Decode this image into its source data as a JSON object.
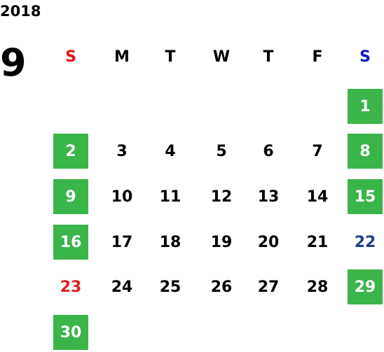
{
  "year": "2018",
  "month": "9",
  "weekdays": [
    {
      "label": "S",
      "color": "#e8111a"
    },
    "M",
    "T",
    "W",
    "T",
    "F",
    {
      "label": "S",
      "color": "#1019cc"
    }
  ],
  "weeks": [
    [
      null,
      null,
      null,
      null,
      null,
      null,
      {
        "day": "1",
        "box": "#3bb54a"
      }
    ],
    [
      {
        "day": "2",
        "box": "#3bb54a"
      },
      "3",
      "4",
      "5",
      "6",
      "7",
      {
        "day": "8",
        "box": "#3bb54a"
      }
    ],
    [
      {
        "day": "9",
        "box": "#3bb54a"
      },
      "10",
      "11",
      "12",
      "13",
      "14",
      {
        "day": "15",
        "box": "#3bb54a"
      }
    ],
    [
      {
        "day": "16",
        "box": "#3bb54a"
      },
      "17",
      "18",
      "19",
      "20",
      "21",
      {
        "day": "22",
        "color": "#1f3f8f"
      }
    ],
    [
      {
        "day": "23",
        "color": "#e02020"
      },
      "24",
      "25",
      "26",
      "27",
      "28",
      {
        "day": "29",
        "box": "#3bb54a"
      }
    ],
    [
      {
        "day": "30",
        "box": "#3bb54a"
      },
      null,
      null,
      null,
      null,
      null,
      null
    ]
  ]
}
